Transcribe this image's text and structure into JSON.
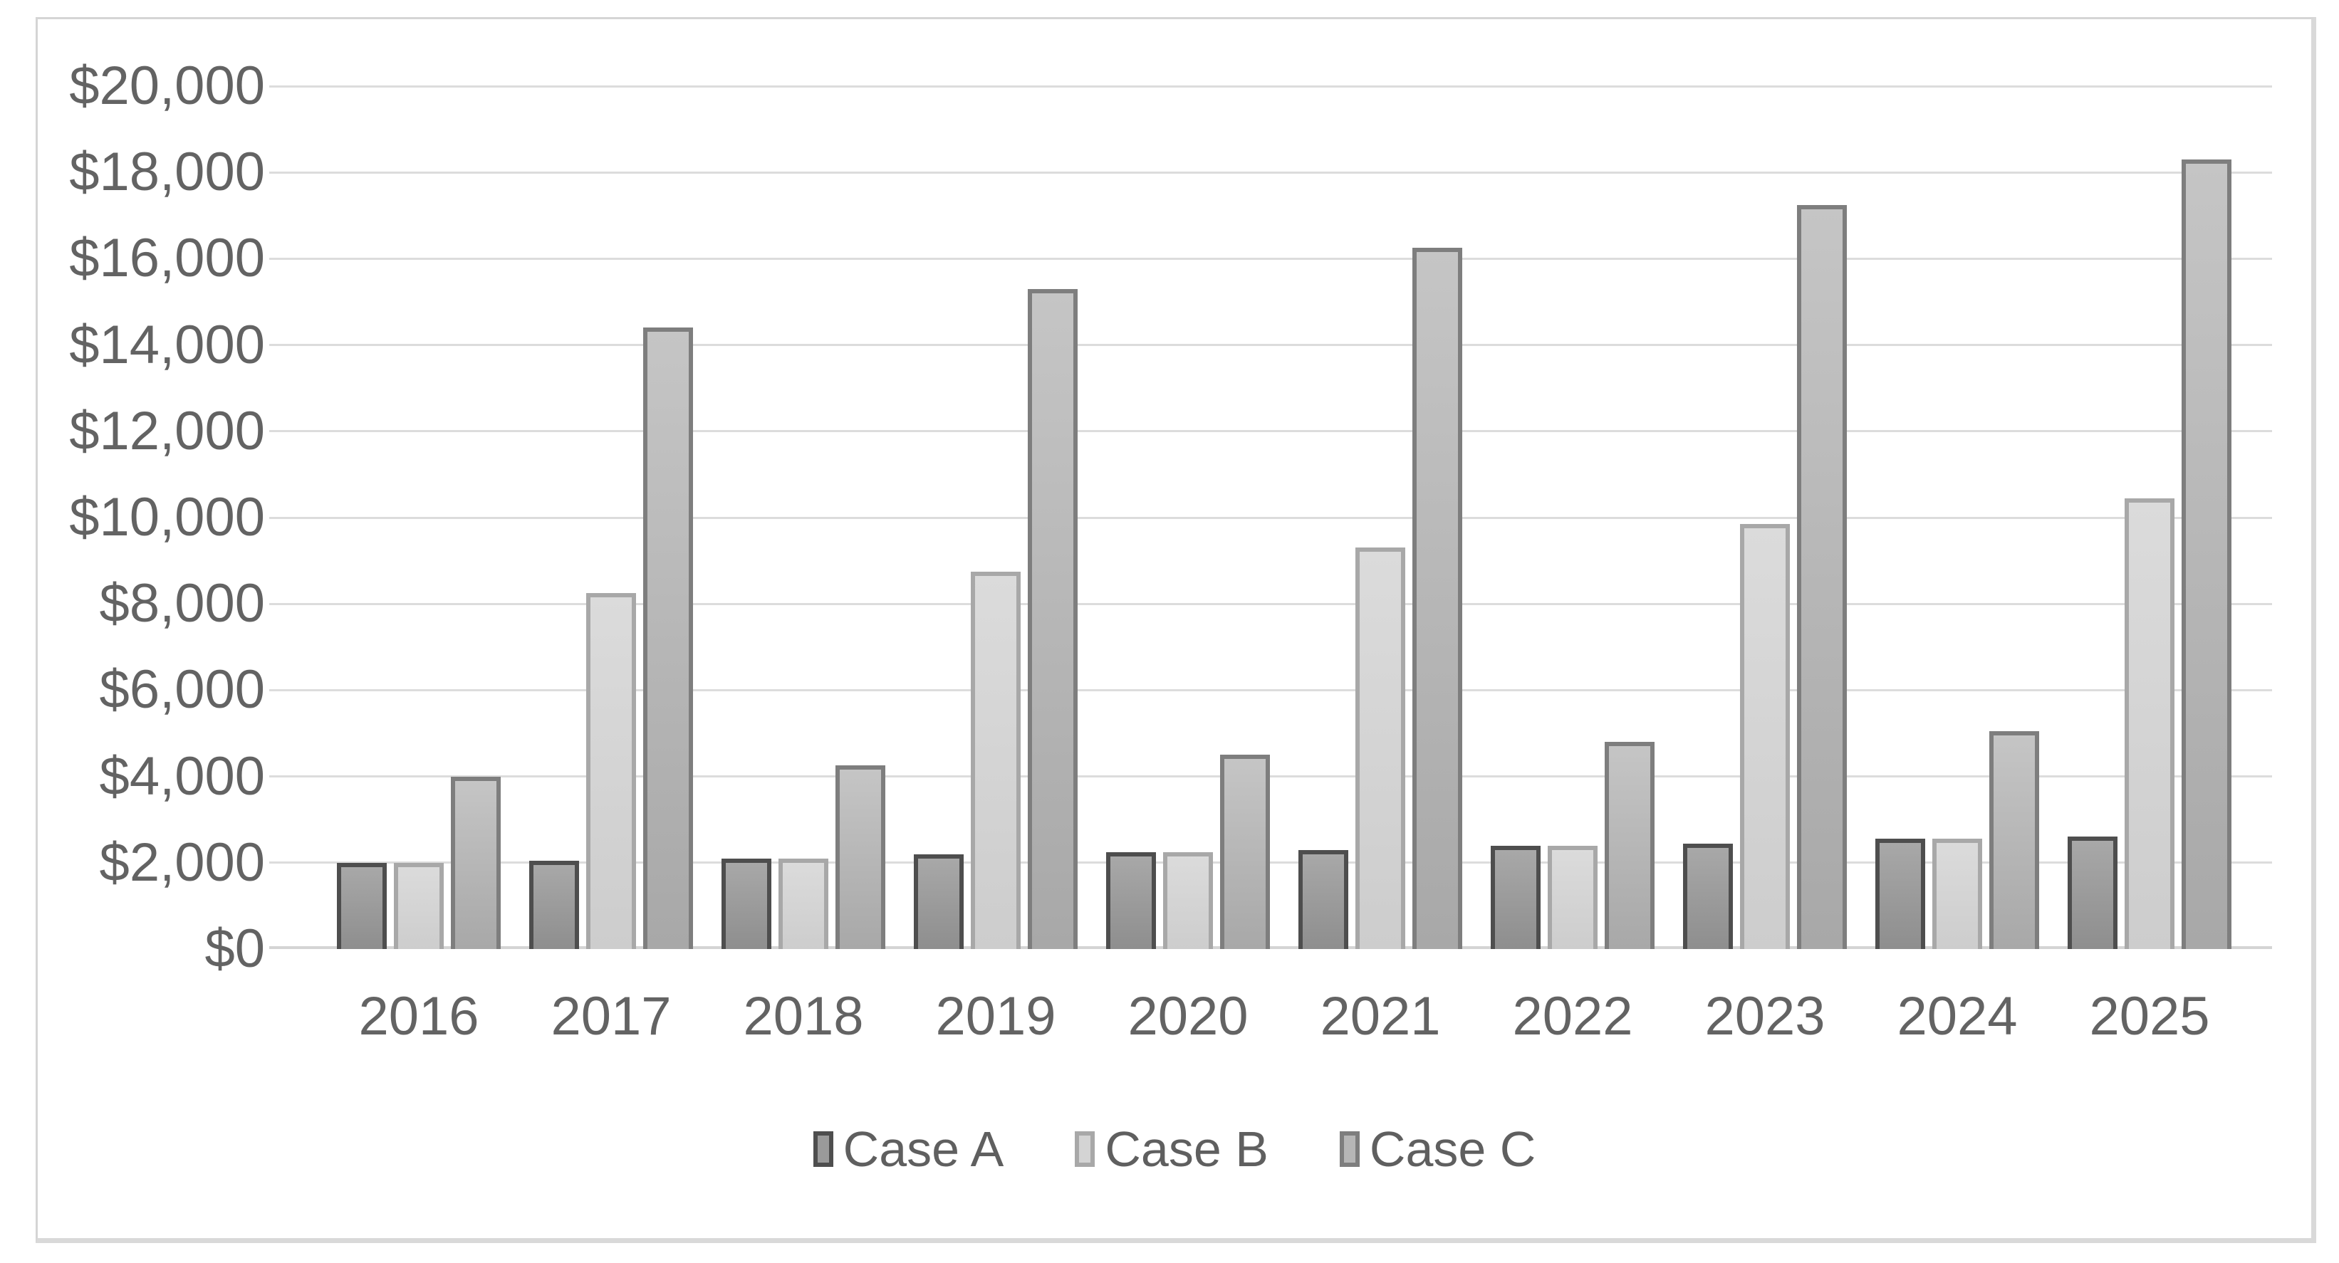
{
  "chart_data": {
    "type": "bar",
    "title": "",
    "xlabel": "",
    "ylabel": "",
    "categories": [
      "2016",
      "2017",
      "2018",
      "2019",
      "2020",
      "2021",
      "2022",
      "2023",
      "2024",
      "2025"
    ],
    "series": [
      {
        "name": "Case A",
        "values": [
          2000,
          2050,
          2100,
          2200,
          2250,
          2300,
          2400,
          2450,
          2550,
          2600
        ],
        "fill_top": "#a8a8a8",
        "fill_bottom": "#8e8e8e",
        "swatch_fill": "#9a9a9a",
        "border": "#4e4e4e"
      },
      {
        "name": "Case B",
        "values": [
          2000,
          8250,
          2100,
          8750,
          2250,
          9300,
          2400,
          9850,
          2550,
          10450
        ],
        "fill_top": "#dbdbdb",
        "fill_bottom": "#cdcdcd",
        "swatch_fill": "#d4d4d4",
        "border": "#a8a8a8"
      },
      {
        "name": "Case C",
        "values": [
          4000,
          14400,
          4250,
          15300,
          4500,
          16250,
          4800,
          17250,
          5050,
          18300
        ],
        "fill_top": "#c5c5c5",
        "fill_bottom": "#a8a8a8",
        "swatch_fill": "#b6b6b6",
        "border": "#7e7e7e"
      }
    ],
    "ylim": [
      0,
      20000
    ],
    "ytick_step": 2000,
    "y_tick_labels": [
      "$0",
      "$2,000",
      "$4,000",
      "$6,000",
      "$8,000",
      "$10,000",
      "$12,000",
      "$14,000",
      "$16,000",
      "$18,000",
      "$20,000"
    ],
    "grid": true,
    "gridline_color": "#dcdcdc",
    "axis_line_color": "#d4d4d4",
    "tick_text_color": "#636363",
    "frame_border_color": "#d5d5d5",
    "background_color": "#ffffff",
    "legend_position": "bottom"
  }
}
